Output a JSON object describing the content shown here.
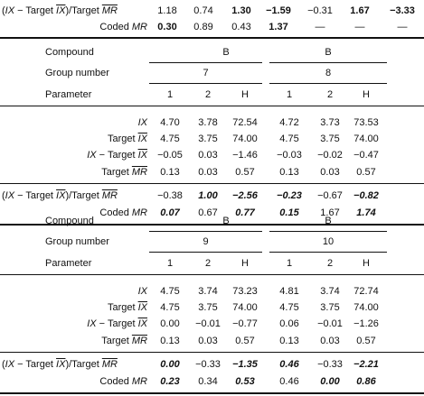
{
  "top_block": {
    "rows": [
      {
        "label_parts": [
          "(",
          "IX",
          " − Target ",
          "IX",
          ")/Target ",
          "MR"
        ],
        "values": [
          "1.18",
          "0.74",
          "1.30",
          "−1.59",
          "−0.31",
          "1.67",
          "−3.33"
        ],
        "bold": [
          false,
          false,
          true,
          true,
          false,
          true,
          true
        ]
      },
      {
        "label_parts": [
          "Coded ",
          "MR"
        ],
        "values": [
          "0.30",
          "0.89",
          "0.43",
          "1.37",
          "—",
          "—",
          "—"
        ],
        "bold": [
          true,
          false,
          false,
          true,
          false,
          false,
          false
        ]
      }
    ]
  },
  "blocks": [
    {
      "compound_label": "Compound",
      "group_label": "Group number",
      "parameter_label": "Parameter",
      "compounds": [
        "B",
        "B"
      ],
      "groups": [
        "7",
        "8"
      ],
      "parameters": [
        "1",
        "2",
        "H",
        "1",
        "2",
        "H"
      ],
      "rows": [
        {
          "label": "IX",
          "values": [
            "4.70",
            "3.78",
            "72.54",
            "4.72",
            "3.73",
            "73.53"
          ],
          "style": [
            "",
            "",
            "",
            "",
            "",
            ""
          ]
        },
        {
          "label": "Target IX",
          "values": [
            "4.75",
            "3.75",
            "74.00",
            "4.75",
            "3.75",
            "74.00"
          ],
          "style": [
            "",
            "",
            "",
            "",
            "",
            ""
          ]
        },
        {
          "label": "IX − Target IX",
          "values": [
            "−0.05",
            "0.03",
            "−1.46",
            "−0.03",
            "−0.02",
            "−0.47"
          ],
          "style": [
            "",
            "",
            "",
            "",
            "",
            ""
          ]
        },
        {
          "label": "Target MR",
          "values": [
            "0.13",
            "0.03",
            "0.57",
            "0.13",
            "0.03",
            "0.57"
          ],
          "style": [
            "",
            "",
            "",
            "",
            "",
            ""
          ]
        },
        {
          "label": "(IX − Target IX)/Target MR",
          "values": [
            "−0.38",
            "1.00",
            "−2.56",
            "−0.23",
            "−0.67",
            "−0.82"
          ],
          "style": [
            "",
            "bi",
            "bi",
            "bi",
            "",
            "bi"
          ]
        },
        {
          "label": "Coded MR",
          "values": [
            "0.07",
            "0.67",
            "0.77",
            "0.15",
            "1.67",
            "1.74"
          ],
          "style": [
            "bi",
            "",
            "bi",
            "bi",
            "",
            "bi"
          ]
        }
      ]
    },
    {
      "compound_label": "Compound",
      "group_label": "Group number",
      "parameter_label": "Parameter",
      "compounds": [
        "B",
        "B"
      ],
      "groups": [
        "9",
        "10"
      ],
      "parameters": [
        "1",
        "2",
        "H",
        "1",
        "2",
        "H"
      ],
      "rows": [
        {
          "label": "IX",
          "values": [
            "4.75",
            "3.74",
            "73.23",
            "4.81",
            "3.74",
            "72.74"
          ],
          "style": [
            "",
            "",
            "",
            "",
            "",
            ""
          ]
        },
        {
          "label": "Target IX",
          "values": [
            "4.75",
            "3.75",
            "74.00",
            "4.75",
            "3.75",
            "74.00"
          ],
          "style": [
            "",
            "",
            "",
            "",
            "",
            ""
          ]
        },
        {
          "label": "IX − Target IX",
          "values": [
            "0.00",
            "−0.01",
            "−0.77",
            "0.06",
            "−0.01",
            "−1.26"
          ],
          "style": [
            "",
            "",
            "",
            "",
            "",
            ""
          ]
        },
        {
          "label": "Target MR",
          "values": [
            "0.13",
            "0.03",
            "0.57",
            "0.13",
            "0.03",
            "0.57"
          ],
          "style": [
            "",
            "",
            "",
            "",
            "",
            ""
          ]
        },
        {
          "label": "(IX − Target IX)/Target MR",
          "values": [
            "0.00",
            "−0.33",
            "−1.35",
            "0.46",
            "−0.33",
            "−2.21"
          ],
          "style": [
            "bi",
            "",
            "bi",
            "bi",
            "",
            "bi"
          ]
        },
        {
          "label": "Coded MR",
          "values": [
            "0.23",
            "0.34",
            "0.53",
            "0.46",
            "0.00",
            "0.86"
          ],
          "style": [
            "bi",
            "",
            "bi",
            "",
            "bi",
            "bi"
          ]
        }
      ]
    }
  ]
}
